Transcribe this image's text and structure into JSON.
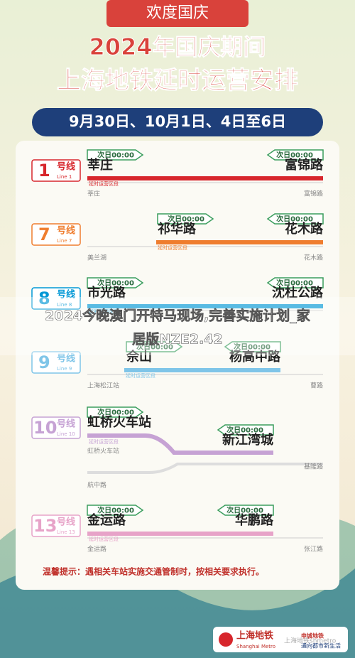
{
  "header": {
    "badge": "欢度国庆",
    "title1": "2024年国庆期间",
    "title2": "上海地铁延时运营安排",
    "dates": "9月30日、10月1日、4日至6日"
  },
  "lines": [
    {
      "number": "1",
      "suffix": "号线",
      "english": "Line 1",
      "color": "#d7262c",
      "stations": [
        {
          "tag": "次日00:00",
          "name": "莘庄"
        },
        {
          "tag": "次日00:00",
          "name": "富锦路"
        }
      ],
      "section": "延时运营区段",
      "termini": [
        "莘庄",
        "富锦路"
      ]
    },
    {
      "number": "7",
      "suffix": "号线",
      "english": "Line 7",
      "color": "#ef7d2e",
      "stations": [
        {
          "tag": "次日00:00",
          "name": "祁华路"
        },
        {
          "tag": "次日00:00",
          "name": "花木路"
        }
      ],
      "section": "延时运营区段",
      "termini": [
        "美兰湖",
        "花木路"
      ]
    },
    {
      "number": "8",
      "suffix": "号线",
      "english": "Line 8",
      "color": "#0097d5",
      "stations": [
        {
          "tag": "次日00:00",
          "name": "市光路"
        },
        {
          "tag": "次日00:00",
          "name": "沈杜公路"
        }
      ],
      "section": "延时运营区段",
      "termini": []
    },
    {
      "number": "9",
      "suffix": "号线",
      "english": "Line 9",
      "color": "#7fc5e8",
      "stations": [
        {
          "tag": "次日00:00",
          "name": "佘山"
        },
        {
          "tag": "次日00:00",
          "name": "杨高中路"
        }
      ],
      "section": "延时运营区段",
      "termini": [
        "上海松江站",
        "曹路"
      ]
    },
    {
      "number": "10",
      "suffix": "号线",
      "english": "Line 10",
      "color": "#c6a2d4",
      "stations": [
        {
          "tag": "次日00:00",
          "name": "虹桥火车站"
        },
        {
          "tag": "次日00:00",
          "name": "新江湾城"
        }
      ],
      "section": "延时运营区段",
      "termini": [
        "虹桥火车站",
        "航中路",
        "基隆路"
      ]
    },
    {
      "number": "13",
      "suffix": "号线",
      "english": "Line 13",
      "color": "#e7a3c8",
      "stations": [
        {
          "tag": "次日00:00",
          "name": "金运路"
        },
        {
          "tag": "次日00:00",
          "name": "华鹏路"
        }
      ],
      "section": "延时运营区段",
      "termini": [
        "金运路",
        "张江路"
      ]
    }
  ],
  "overlay": "2024今晚澳门开特马现场,完善实施计划_家居版NZE2.42",
  "tip": "温馨提示：遇相关车站实施交通管制时，按相关要求执行。",
  "logo": {
    "name": "上海地铁",
    "english": "Shanghai Metro"
  },
  "watermark": "上海地铁shmetro",
  "slogan": {
    "brand": "申城地铁",
    "text": "通向都市新生活"
  }
}
